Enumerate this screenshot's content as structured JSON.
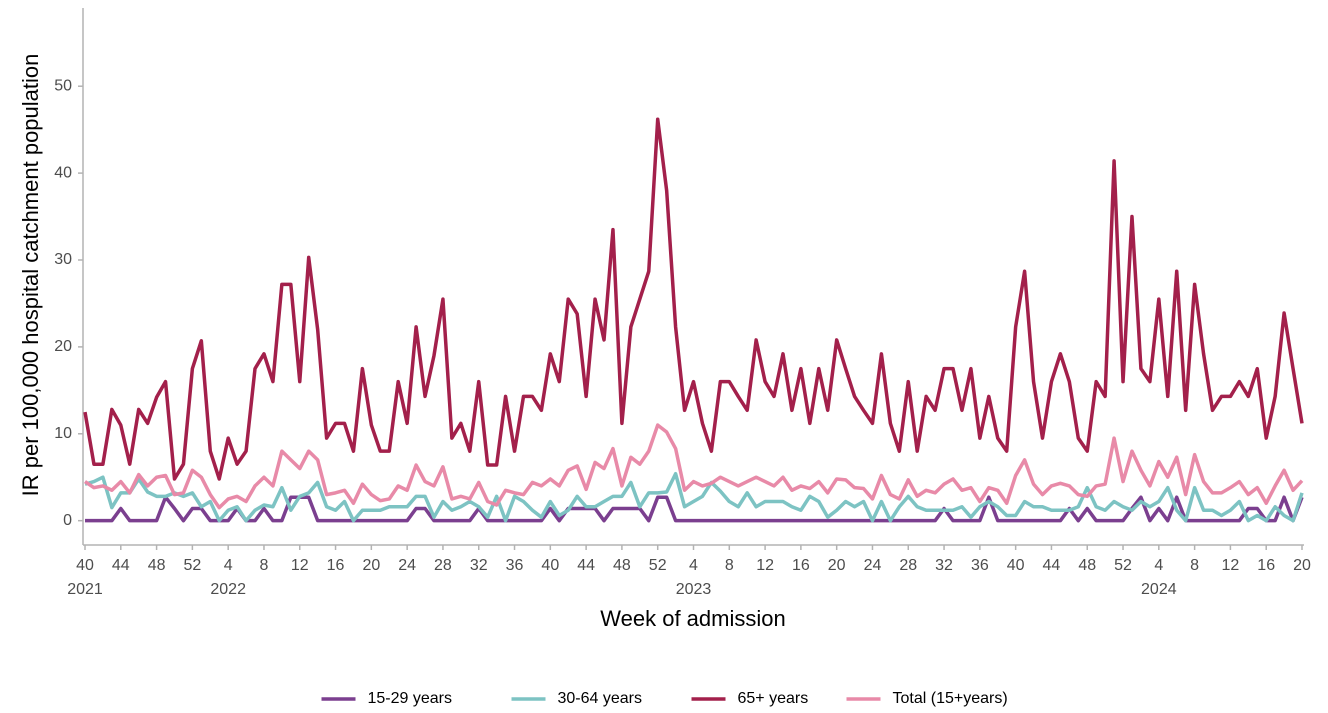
{
  "chart_data": {
    "type": "line",
    "x_label": "Week of admission",
    "y_label": "IR per 100,000 hospital catchment population",
    "categories": [
      "40",
      null,
      null,
      null,
      "44",
      null,
      null,
      null,
      "48",
      null,
      null,
      null,
      "52",
      null,
      null,
      null,
      "4",
      null,
      null,
      null,
      "8",
      null,
      null,
      null,
      "12",
      null,
      null,
      null,
      "16",
      null,
      null,
      null,
      "20",
      null,
      null,
      null,
      "24",
      null,
      null,
      null,
      "28",
      null,
      null,
      null,
      "32",
      null,
      null,
      null,
      "36",
      null,
      null,
      null,
      "40",
      null,
      null,
      null,
      "44",
      null,
      null,
      null,
      "48",
      null,
      null,
      null,
      "52",
      null,
      null,
      null,
      "4",
      null,
      null,
      null,
      "8",
      null,
      null,
      null,
      "12",
      null,
      null,
      null,
      "16",
      null,
      null,
      null,
      "20",
      null,
      null,
      null,
      "24",
      null,
      null,
      null,
      "28",
      null,
      null,
      null,
      "32",
      null,
      null,
      null,
      "36",
      null,
      null,
      null,
      "40",
      null,
      null,
      null,
      "44",
      null,
      null,
      null,
      "48",
      null,
      null,
      null,
      "52",
      null,
      null,
      null,
      "4",
      null,
      null,
      null,
      "8",
      null,
      null,
      null,
      "12",
      null,
      null,
      null,
      "16",
      null,
      null,
      null,
      "20"
    ],
    "category_years": [
      "2021",
      null,
      null,
      null,
      null,
      null,
      null,
      null,
      null,
      null,
      null,
      null,
      null,
      null,
      null,
      null,
      "2022",
      null,
      null,
      null,
      null,
      null,
      null,
      null,
      null,
      null,
      null,
      null,
      null,
      null,
      null,
      null,
      null,
      null,
      null,
      null,
      null,
      null,
      null,
      null,
      null,
      null,
      null,
      null,
      null,
      null,
      null,
      null,
      null,
      null,
      null,
      null,
      null,
      null,
      null,
      null,
      null,
      null,
      null,
      null,
      null,
      null,
      null,
      null,
      null,
      null,
      null,
      null,
      "2023",
      null,
      null,
      null,
      null,
      null,
      null,
      null,
      null,
      null,
      null,
      null,
      null,
      null,
      null,
      null,
      null,
      null,
      null,
      null,
      null,
      null,
      null,
      null,
      null,
      null,
      null,
      null,
      null,
      null,
      null,
      null,
      null,
      null,
      null,
      null,
      null,
      null,
      null,
      null,
      null,
      null,
      null,
      null,
      null,
      null,
      null,
      null,
      null,
      null,
      null,
      null,
      "2024",
      null,
      null,
      null,
      null,
      null,
      null,
      null,
      null,
      null,
      null,
      null,
      null,
      null,
      null,
      null,
      null
    ],
    "series": [
      {
        "name": "15-29 years",
        "color": "#7b3f8f",
        "values": [
          0,
          0,
          0,
          0,
          1.4,
          0,
          0,
          0,
          0,
          2.7,
          1.4,
          0,
          1.4,
          1.4,
          0,
          0,
          0,
          1.4,
          0,
          0,
          1.4,
          0,
          0,
          2.7,
          2.7,
          2.7,
          0,
          0,
          0,
          0,
          0,
          0,
          0,
          0,
          0,
          0,
          0,
          1.4,
          1.4,
          0,
          0,
          0,
          0,
          0,
          1.4,
          0,
          0,
          0,
          0,
          0,
          0,
          0,
          1.4,
          0,
          1.4,
          1.4,
          1.4,
          1.4,
          0,
          1.4,
          1.4,
          1.4,
          1.4,
          0,
          2.7,
          2.7,
          0,
          0,
          0,
          0,
          0,
          0,
          0,
          0,
          0,
          0,
          0,
          0,
          0,
          0,
          0,
          0,
          0,
          0,
          0,
          0,
          0,
          0,
          0,
          0,
          0,
          0,
          0,
          0,
          0,
          0,
          1.4,
          0,
          0,
          0,
          0,
          2.7,
          0,
          0,
          0,
          0,
          0,
          0,
          0,
          0,
          1.4,
          0,
          1.4,
          0,
          0,
          0,
          0,
          1.4,
          2.7,
          0,
          1.4,
          0,
          2.7,
          0,
          0,
          0,
          0,
          0,
          0,
          0,
          1.4,
          1.4,
          0,
          0,
          2.7,
          0,
          2.7
        ]
      },
      {
        "name": "30-64 years",
        "color": "#7dc3c3",
        "values": [
          4.2,
          4.5,
          5,
          1.5,
          3.2,
          3.2,
          4.8,
          3.3,
          2.8,
          2.8,
          3.2,
          2.8,
          3.2,
          1.6,
          2.2,
          0,
          1.2,
          1.6,
          0,
          1.2,
          1.8,
          1.6,
          3.8,
          1.2,
          2.8,
          3.2,
          4.4,
          1.6,
          1.2,
          2.2,
          0,
          1.2,
          1.2,
          1.2,
          1.6,
          1.6,
          1.6,
          2.8,
          2.8,
          0.4,
          2.2,
          1.2,
          1.6,
          2.2,
          1.6,
          0.4,
          2.8,
          0,
          2.8,
          2.2,
          1.2,
          0.4,
          2.2,
          0.6,
          1.2,
          2.8,
          1.6,
          1.6,
          2.2,
          2.8,
          2.8,
          4.4,
          1.6,
          3.2,
          3.2,
          3.3,
          5.4,
          1.6,
          2.2,
          2.8,
          4.4,
          3.4,
          2.2,
          1.6,
          3.2,
          1.6,
          2.2,
          2.2,
          2.2,
          1.6,
          1.2,
          2.8,
          2.2,
          0.4,
          1.2,
          2.2,
          1.6,
          2.2,
          0,
          2.2,
          0,
          1.6,
          2.8,
          1.6,
          1.2,
          1.2,
          1.2,
          1.2,
          1.6,
          0.4,
          1.6,
          2.2,
          1.6,
          0.6,
          0.6,
          2.2,
          1.6,
          1.6,
          1.2,
          1.2,
          1.2,
          1.6,
          3.8,
          1.6,
          1.2,
          2.2,
          1.6,
          1.2,
          2.2,
          1.6,
          2.2,
          3.8,
          1.2,
          0,
          3.8,
          1.2,
          1.2,
          0.6,
          1.2,
          2.2,
          0,
          0.6,
          0,
          1.6,
          0.6,
          0,
          3.2
        ]
      },
      {
        "name": "65+ years",
        "color": "#a3204b",
        "values": [
          12.5,
          6.5,
          6.5,
          12.8,
          11,
          6.5,
          12.8,
          11.2,
          14.2,
          16,
          4.8,
          6.5,
          17.5,
          20.7,
          8,
          4.8,
          9.5,
          6.5,
          8,
          17.5,
          19.2,
          16,
          27.2,
          27.2,
          16,
          30.3,
          22,
          9.5,
          11.2,
          11.2,
          8,
          17.5,
          11,
          8,
          8,
          16,
          11.2,
          22.3,
          14.3,
          19,
          25.5,
          9.5,
          11.2,
          8,
          16,
          6.4,
          6.4,
          14.3,
          8,
          14.3,
          14.3,
          12.7,
          19.2,
          16,
          25.5,
          23.8,
          14.3,
          25.5,
          20.8,
          33.5,
          11.2,
          22.3,
          25.5,
          28.7,
          46.2,
          38,
          22.3,
          12.7,
          16,
          11.2,
          8,
          16,
          16,
          14.3,
          12.7,
          20.8,
          16,
          14.3,
          19.2,
          12.7,
          17.5,
          11.2,
          17.5,
          12.7,
          20.8,
          17.5,
          14.3,
          12.7,
          11.2,
          19.2,
          11.2,
          8,
          16,
          8,
          14.3,
          12.7,
          17.5,
          17.5,
          12.7,
          17.5,
          9.5,
          14.3,
          9.5,
          8,
          22.3,
          28.7,
          16,
          9.5,
          16,
          19.2,
          16,
          9.5,
          8,
          16,
          14.3,
          41.4,
          16,
          35,
          17.5,
          16,
          25.5,
          14.3,
          28.7,
          12.7,
          27.2,
          19.2,
          12.7,
          14.3,
          14.3,
          16,
          14.3,
          17.5,
          9.5,
          14.3,
          23.9,
          17.5,
          11.2
        ]
      },
      {
        "name": "Total (15+years)",
        "color": "#e88aa8",
        "values": [
          4.5,
          3.8,
          4,
          3.5,
          4.5,
          3.2,
          5.3,
          4,
          5,
          5.2,
          3,
          3.2,
          5.8,
          5,
          3,
          1.5,
          2.5,
          2.8,
          2.2,
          4,
          5,
          4,
          8,
          7,
          6,
          8,
          7,
          3,
          3.2,
          3.5,
          2,
          4.2,
          3,
          2.3,
          2.5,
          4,
          3.5,
          6.4,
          4.5,
          4,
          6.2,
          2.5,
          2.8,
          2.5,
          4.4,
          2.2,
          1.8,
          3.5,
          3.2,
          3,
          4.4,
          4,
          4.8,
          4,
          5.8,
          6.3,
          3.6,
          6.7,
          6,
          8.3,
          4,
          7.3,
          6.5,
          8,
          11,
          10.2,
          8.3,
          3.5,
          4.5,
          4,
          4.3,
          5,
          4.5,
          4,
          4.5,
          5,
          4.5,
          4,
          5,
          3.5,
          4,
          3.7,
          4.5,
          3.2,
          4.8,
          4.7,
          3.8,
          3.7,
          2.5,
          5.2,
          3,
          2.5,
          4.7,
          2.8,
          3.5,
          3.2,
          4.2,
          4.8,
          3.5,
          3.8,
          2.2,
          3.8,
          3.5,
          2,
          5.2,
          7,
          4.2,
          3,
          4,
          4.3,
          4,
          3,
          2.8,
          4,
          4.2,
          9.5,
          4.5,
          8,
          5.8,
          4,
          6.8,
          5,
          7.3,
          3,
          7.6,
          4.5,
          3.2,
          3.2,
          3.8,
          4.5,
          3,
          3.8,
          2,
          4,
          5.8,
          3.5,
          4.6
        ]
      }
    ],
    "ylim": [
      -2.8,
      59
    ],
    "yticks": [
      0,
      10,
      20,
      30,
      40,
      50
    ],
    "grid": false,
    "legend": "bottom"
  }
}
